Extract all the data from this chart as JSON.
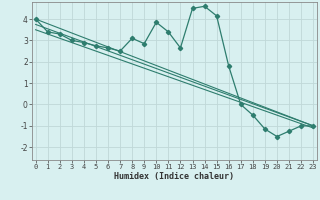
{
  "xlabel": "Humidex (Indice chaleur)",
  "x_values": [
    0,
    1,
    2,
    3,
    4,
    5,
    6,
    7,
    8,
    9,
    10,
    11,
    12,
    13,
    14,
    15,
    16,
    17,
    18,
    19,
    20,
    21,
    22,
    23
  ],
  "line1": [
    4.0,
    3.4,
    3.3,
    3.0,
    2.9,
    2.75,
    2.65,
    2.5,
    3.1,
    2.85,
    3.85,
    3.4,
    2.65,
    4.5,
    4.6,
    4.15,
    1.8,
    0.0,
    -0.5,
    -1.15,
    -1.5,
    -1.25,
    -1.0,
    -1.0
  ],
  "line_straight1": [
    [
      0,
      4.0
    ],
    [
      23,
      -1.0
    ]
  ],
  "line_straight2": [
    [
      0,
      3.75
    ],
    [
      23,
      -1.0
    ]
  ],
  "line_straight3": [
    [
      0,
      3.5
    ],
    [
      23,
      -1.1
    ]
  ],
  "color": "#2e7d6e",
  "bg_color": "#d8f0f0",
  "grid_color": "#c0d8d8",
  "ylim": [
    -2.6,
    4.8
  ],
  "xlim": [
    -0.3,
    23.3
  ],
  "yticks": [
    -2,
    -1,
    0,
    1,
    2,
    3,
    4
  ],
  "xticks": [
    0,
    1,
    2,
    3,
    4,
    5,
    6,
    7,
    8,
    9,
    10,
    11,
    12,
    13,
    14,
    15,
    16,
    17,
    18,
    19,
    20,
    21,
    22,
    23
  ],
  "tick_fontsize": 5.0,
  "xlabel_fontsize": 6.0
}
